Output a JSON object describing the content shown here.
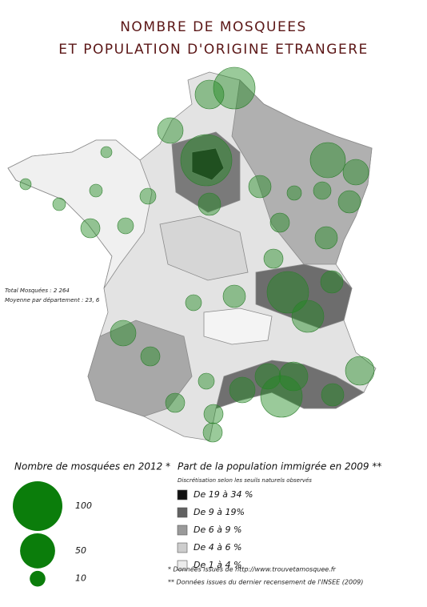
{
  "title_lines": [
    "NOMBRE DE MOSQUEES",
    "ET POPULATION D'ORIGINE ETRANGERE"
  ],
  "summary": [
    "Total Mosquées : 2 264",
    "Moyenne par département : 23, 6"
  ],
  "legend_mosques": {
    "title": "Nombre de mosquées en 2012 *",
    "color": "#0b7d0b",
    "sizes": [
      100,
      50,
      10
    ]
  },
  "legend_population": {
    "title": "Part de la population immigrée en 2009 **",
    "subtitle": "Discrétisation selon les seuils naturels observés",
    "classes": [
      {
        "label": "De 19 à 34 %",
        "color": "#111111"
      },
      {
        "label": "De 9 à 19%",
        "color": "#626262"
      },
      {
        "label": "De 6 à 9 %",
        "color": "#9a9a9a"
      },
      {
        "label": "De 4 à 6 %",
        "color": "#cdcdcd"
      },
      {
        "label": "De 1 à 4 %",
        "color": "#ececec"
      }
    ]
  },
  "notes": [
    "*   Données issues de http://www.trouvetamosquee.fr",
    "**  Données issues du dernier recensement de l'INSEE (2009)"
  ]
}
